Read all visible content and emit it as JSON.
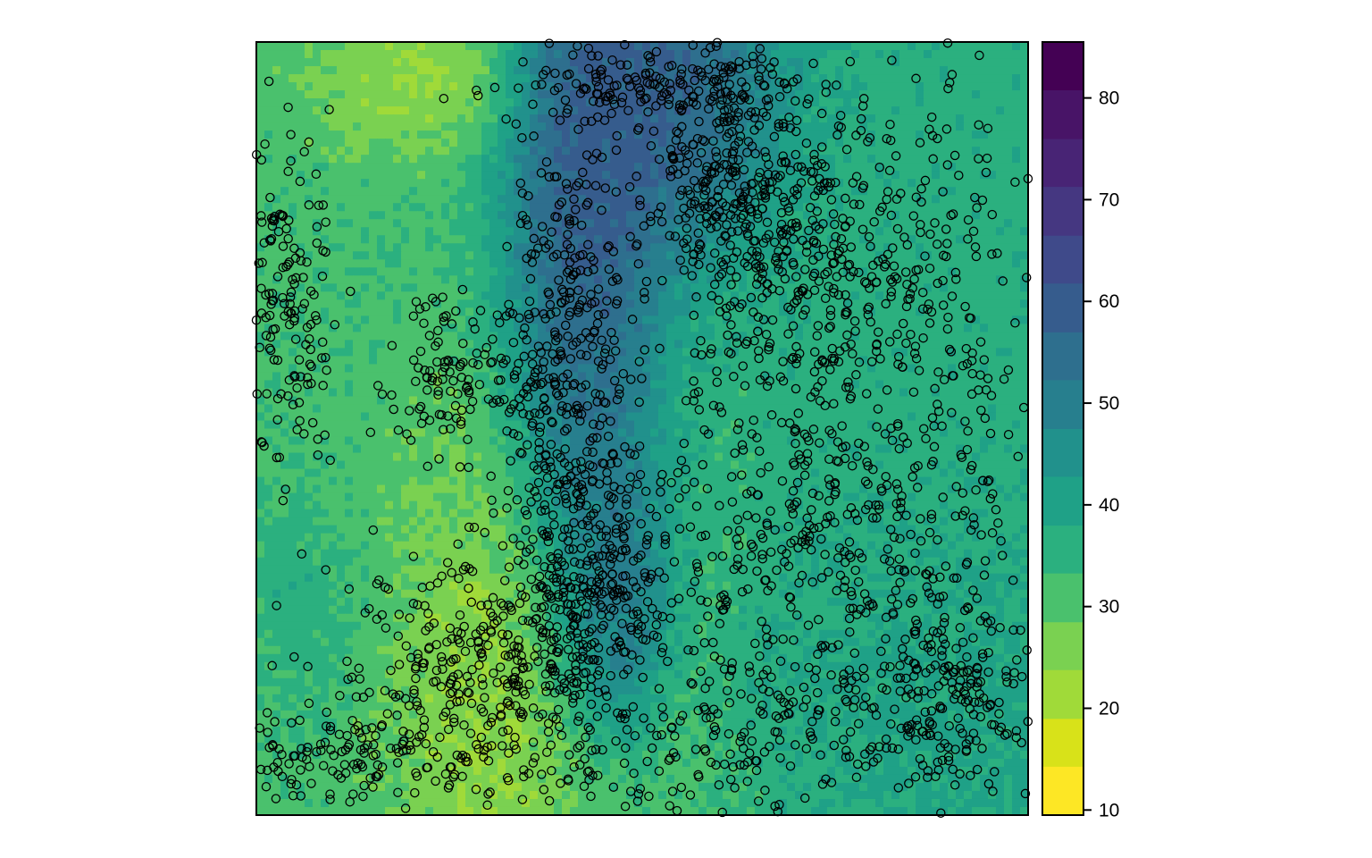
{
  "chart_data": {
    "type": "heatmap",
    "title": "",
    "xlabel": "",
    "ylabel": "",
    "grid": false,
    "axes_ticks_shown": false,
    "overlay": {
      "type": "scatter",
      "marker": "open-circle",
      "color": "#000000",
      "approx_count": 3000,
      "description_hidden": true
    },
    "colorbar": {
      "position": "right",
      "range": [
        9.5,
        85.5
      ],
      "ticks": [
        10,
        20,
        30,
        40,
        50,
        60,
        70,
        80
      ],
      "tick_labels": [
        "10",
        "20",
        "30",
        "40",
        "50",
        "60",
        "70",
        "80"
      ],
      "levels": [
        {
          "lower": 9.5,
          "upper": 14.3,
          "color": "#FDE725"
        },
        {
          "lower": 14.3,
          "upper": 19.0,
          "color": "#D8E219"
        },
        {
          "lower": 19.0,
          "upper": 23.8,
          "color": "#A0DA39"
        },
        {
          "lower": 23.8,
          "upper": 28.5,
          "color": "#7AD151"
        },
        {
          "lower": 28.5,
          "upper": 33.3,
          "color": "#4AC16D"
        },
        {
          "lower": 33.3,
          "upper": 38.0,
          "color": "#2BB07F"
        },
        {
          "lower": 38.0,
          "upper": 42.8,
          "color": "#1FA187"
        },
        {
          "lower": 42.8,
          "upper": 47.5,
          "color": "#21918C"
        },
        {
          "lower": 47.5,
          "upper": 52.3,
          "color": "#277F8E"
        },
        {
          "lower": 52.3,
          "upper": 57.0,
          "color": "#2E6F8E"
        },
        {
          "lower": 57.0,
          "upper": 61.8,
          "color": "#365C8D"
        },
        {
          "lower": 61.8,
          "upper": 66.5,
          "color": "#3F4A8A"
        },
        {
          "lower": 66.5,
          "upper": 71.3,
          "color": "#453781"
        },
        {
          "lower": 71.3,
          "upper": 76.0,
          "color": "#482475"
        },
        {
          "lower": 76.0,
          "upper": 80.8,
          "color": "#481467"
        },
        {
          "lower": 80.8,
          "upper": 85.5,
          "color": "#440154"
        }
      ]
    },
    "field_approximation": {
      "grid_resolution": [
        96,
        96
      ],
      "components": [
        {
          "name": "west-plain",
          "cx": 0.18,
          "cy": 0.55,
          "sx": 0.22,
          "sy": 0.55,
          "value": 32
        },
        {
          "name": "west-teal-patch",
          "cx": 0.06,
          "cy": 0.72,
          "sx": 0.05,
          "sy": 0.08,
          "value": 40
        },
        {
          "name": "central-ridge",
          "cx": 0.42,
          "cy": 0.38,
          "sx": 0.06,
          "sy": 0.28,
          "value": 72
        },
        {
          "name": "ridge-south",
          "cx": 0.46,
          "cy": 0.72,
          "sx": 0.04,
          "sy": 0.1,
          "value": 64
        },
        {
          "name": "north-ridge",
          "cx": 0.5,
          "cy": 0.1,
          "sx": 0.1,
          "sy": 0.12,
          "value": 66
        },
        {
          "name": "east-plateau",
          "cx": 0.8,
          "cy": 0.4,
          "sx": 0.2,
          "sy": 0.3,
          "value": 36
        },
        {
          "name": "southeast-teal",
          "cx": 0.9,
          "cy": 0.8,
          "sx": 0.14,
          "sy": 0.12,
          "value": 40
        },
        {
          "name": "yellow-valley",
          "cx": 0.33,
          "cy": 0.8,
          "sx": 0.1,
          "sy": 0.2,
          "value": 16
        },
        {
          "name": "north-yellow",
          "cx": 0.22,
          "cy": 0.05,
          "sx": 0.08,
          "sy": 0.06,
          "value": 18
        }
      ]
    }
  }
}
